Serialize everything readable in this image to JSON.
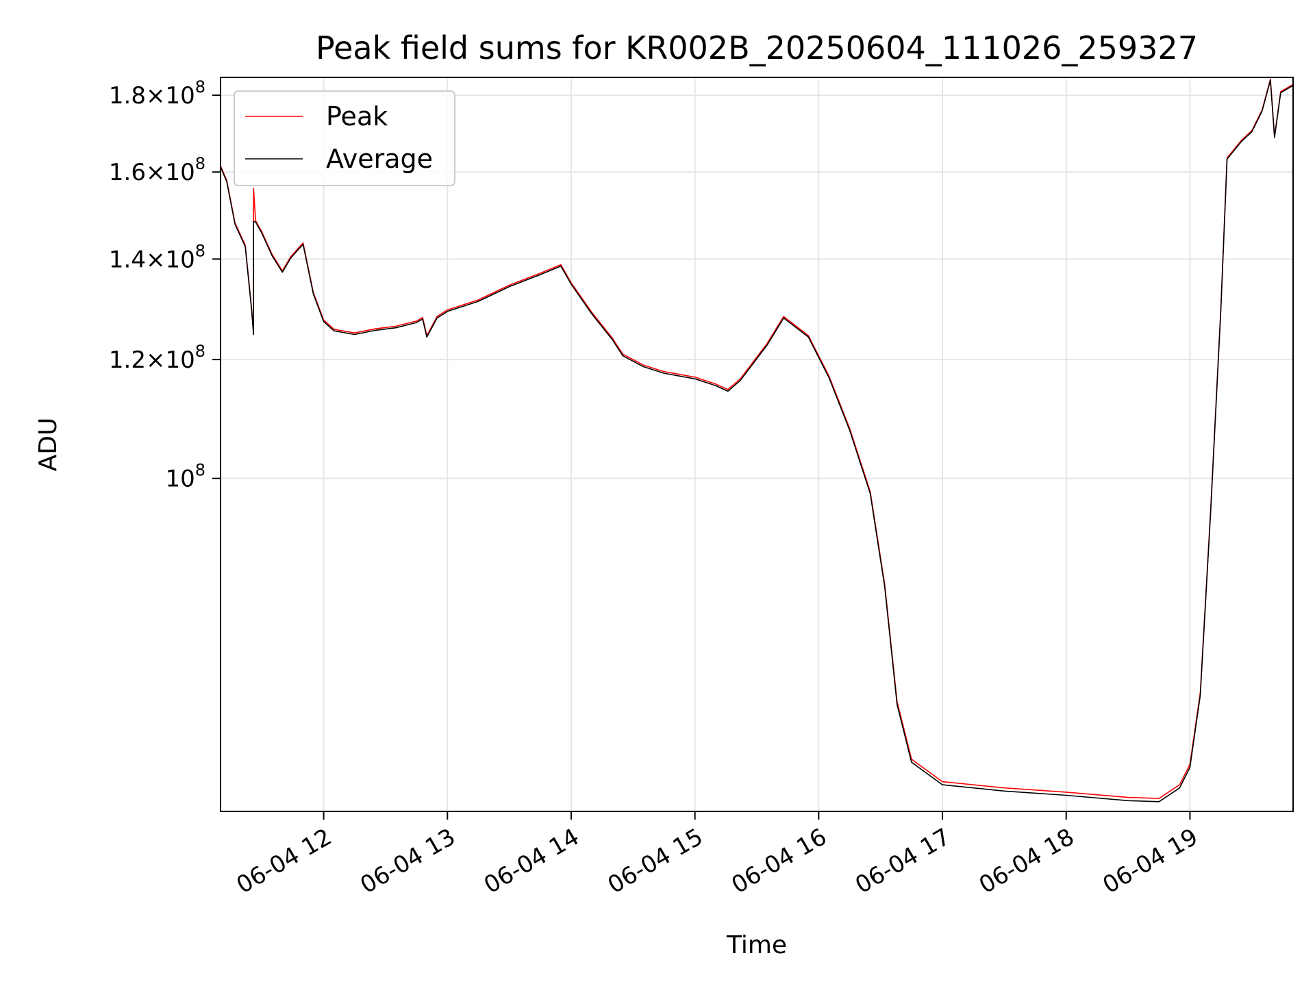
{
  "chart_data": {
    "type": "line",
    "title": "Peak field sums for KR002B_20250604_111026_259327",
    "xlabel": "Time",
    "ylabel": "ADU",
    "y_scale": "log",
    "grid": true,
    "legend_position": "top-left",
    "x_range": [
      "2025-06-04 11:10",
      "2025-06-04 19:50"
    ],
    "ylim": [
      60000000,
      185000000
    ],
    "x_ticks": [
      {
        "label": "06-04 12",
        "time": "2025-06-04 12:00"
      },
      {
        "label": "06-04 13",
        "time": "2025-06-04 13:00"
      },
      {
        "label": "06-04 14",
        "time": "2025-06-04 14:00"
      },
      {
        "label": "06-04 15",
        "time": "2025-06-04 15:00"
      },
      {
        "label": "06-04 16",
        "time": "2025-06-04 16:00"
      },
      {
        "label": "06-04 17",
        "time": "2025-06-04 17:00"
      },
      {
        "label": "06-04 18",
        "time": "2025-06-04 18:00"
      },
      {
        "label": "06-04 19",
        "time": "2025-06-04 19:00"
      }
    ],
    "y_ticks": [
      {
        "value": 100000000,
        "mantissa": "",
        "exponent": "8"
      },
      {
        "value": 120000000,
        "mantissa": "1.2",
        "exponent": "8"
      },
      {
        "value": 140000000,
        "mantissa": "1.4",
        "exponent": "8"
      },
      {
        "value": 160000000,
        "mantissa": "1.6",
        "exponent": "8"
      },
      {
        "value": 180000000,
        "mantissa": "1.8",
        "exponent": "8"
      }
    ],
    "series": [
      {
        "name": "Peak",
        "color": "#ff0000",
        "points": [
          [
            "2025-06-04 11:10",
            161500000
          ],
          [
            "2025-06-04 11:13",
            158000000
          ],
          [
            "2025-06-04 11:17",
            148000000
          ],
          [
            "2025-06-04 11:22",
            143000000
          ],
          [
            "2025-06-04 11:25",
            130000000
          ],
          [
            "2025-06-04 11:26",
            125000000
          ],
          [
            "2025-06-04 11:26",
            156000000
          ],
          [
            "2025-06-04 11:27",
            148500000
          ],
          [
            "2025-06-04 11:30",
            146000000
          ],
          [
            "2025-06-04 11:35",
            141000000
          ],
          [
            "2025-06-04 11:40",
            137500000
          ],
          [
            "2025-06-04 11:44",
            140500000
          ],
          [
            "2025-06-04 11:48",
            142500000
          ],
          [
            "2025-06-04 11:50",
            143500000
          ],
          [
            "2025-06-04 11:55",
            133000000
          ],
          [
            "2025-06-04 12:00",
            127500000
          ],
          [
            "2025-06-04 12:05",
            125700000
          ],
          [
            "2025-06-04 12:15",
            125000000
          ],
          [
            "2025-06-04 12:25",
            125800000
          ],
          [
            "2025-06-04 12:35",
            126300000
          ],
          [
            "2025-06-04 12:45",
            127300000
          ],
          [
            "2025-06-04 12:48",
            128000000
          ],
          [
            "2025-06-04 12:50",
            124500000
          ],
          [
            "2025-06-04 12:55",
            128200000
          ],
          [
            "2025-06-04 13:00",
            129500000
          ],
          [
            "2025-06-04 13:15",
            131500000
          ],
          [
            "2025-06-04 13:30",
            134500000
          ],
          [
            "2025-06-04 13:45",
            137000000
          ],
          [
            "2025-06-04 13:55",
            138800000
          ],
          [
            "2025-06-04 14:00",
            135000000
          ],
          [
            "2025-06-04 14:10",
            129000000
          ],
          [
            "2025-06-04 14:20",
            124000000
          ],
          [
            "2025-06-04 14:25",
            121000000
          ],
          [
            "2025-06-04 14:35",
            119000000
          ],
          [
            "2025-06-04 14:45",
            117800000
          ],
          [
            "2025-06-04 15:00",
            116800000
          ],
          [
            "2025-06-04 15:10",
            115600000
          ],
          [
            "2025-06-04 15:16",
            114600000
          ],
          [
            "2025-06-04 15:22",
            116500000
          ],
          [
            "2025-06-04 15:35",
            123000000
          ],
          [
            "2025-06-04 15:43",
            128200000
          ],
          [
            "2025-06-04 15:55",
            124500000
          ],
          [
            "2025-06-04 16:05",
            117000000
          ],
          [
            "2025-06-04 16:15",
            108000000
          ],
          [
            "2025-06-04 16:25",
            98000000
          ],
          [
            "2025-06-04 16:32",
            85000000
          ],
          [
            "2025-06-04 16:38",
            71000000
          ],
          [
            "2025-06-04 16:45",
            65000000
          ],
          [
            "2025-06-04 17:00",
            62800000
          ],
          [
            "2025-06-04 17:30",
            62200000
          ],
          [
            "2025-06-04 18:00",
            61800000
          ],
          [
            "2025-06-04 18:30",
            61300000
          ],
          [
            "2025-06-04 18:45",
            61200000
          ],
          [
            "2025-06-04 18:55",
            62500000
          ],
          [
            "2025-06-04 19:00",
            64500000
          ],
          [
            "2025-06-04 19:05",
            72000000
          ],
          [
            "2025-06-04 19:10",
            95000000
          ],
          [
            "2025-06-04 19:15",
            130000000
          ],
          [
            "2025-06-04 19:18",
            163500000
          ],
          [
            "2025-06-04 19:25",
            168000000
          ],
          [
            "2025-06-04 19:30",
            170500000
          ],
          [
            "2025-06-04 19:35",
            176000000
          ],
          [
            "2025-06-04 19:39",
            184500000
          ],
          [
            "2025-06-04 19:41",
            169000000
          ],
          [
            "2025-06-04 19:44",
            181000000
          ],
          [
            "2025-06-04 19:50",
            183000000
          ]
        ]
      },
      {
        "name": "Average",
        "color": "#000000",
        "points": [
          [
            "2025-06-04 11:10",
            161200000
          ],
          [
            "2025-06-04 11:13",
            157700000
          ],
          [
            "2025-06-04 11:17",
            147700000
          ],
          [
            "2025-06-04 11:22",
            142700000
          ],
          [
            "2025-06-04 11:25",
            129700000
          ],
          [
            "2025-06-04 11:26",
            124700000
          ],
          [
            "2025-06-04 11:26",
            148300000
          ],
          [
            "2025-06-04 11:27",
            148200000
          ],
          [
            "2025-06-04 11:30",
            145700000
          ],
          [
            "2025-06-04 11:35",
            140700000
          ],
          [
            "2025-06-04 11:40",
            137200000
          ],
          [
            "2025-06-04 11:44",
            140200000
          ],
          [
            "2025-06-04 11:48",
            142200000
          ],
          [
            "2025-06-04 11:50",
            143200000
          ],
          [
            "2025-06-04 11:55",
            132700000
          ],
          [
            "2025-06-04 12:00",
            127200000
          ],
          [
            "2025-06-04 12:05",
            125400000
          ],
          [
            "2025-06-04 12:15",
            124700000
          ],
          [
            "2025-06-04 12:25",
            125500000
          ],
          [
            "2025-06-04 12:35",
            126000000
          ],
          [
            "2025-06-04 12:45",
            127000000
          ],
          [
            "2025-06-04 12:48",
            127700000
          ],
          [
            "2025-06-04 12:50",
            124200000
          ],
          [
            "2025-06-04 12:55",
            127900000
          ],
          [
            "2025-06-04 13:00",
            129200000
          ],
          [
            "2025-06-04 13:15",
            131200000
          ],
          [
            "2025-06-04 13:30",
            134200000
          ],
          [
            "2025-06-04 13:45",
            136700000
          ],
          [
            "2025-06-04 13:55",
            138500000
          ],
          [
            "2025-06-04 14:00",
            134700000
          ],
          [
            "2025-06-04 14:10",
            128700000
          ],
          [
            "2025-06-04 14:20",
            123700000
          ],
          [
            "2025-06-04 14:25",
            120700000
          ],
          [
            "2025-06-04 14:35",
            118700000
          ],
          [
            "2025-06-04 14:45",
            117500000
          ],
          [
            "2025-06-04 15:00",
            116500000
          ],
          [
            "2025-06-04 15:10",
            115300000
          ],
          [
            "2025-06-04 15:16",
            114300000
          ],
          [
            "2025-06-04 15:22",
            116200000
          ],
          [
            "2025-06-04 15:35",
            122700000
          ],
          [
            "2025-06-04 15:43",
            127900000
          ],
          [
            "2025-06-04 15:55",
            124200000
          ],
          [
            "2025-06-04 16:05",
            116700000
          ],
          [
            "2025-06-04 16:15",
            107700000
          ],
          [
            "2025-06-04 16:25",
            97700000
          ],
          [
            "2025-06-04 16:32",
            84700000
          ],
          [
            "2025-06-04 16:38",
            70700000
          ],
          [
            "2025-06-04 16:45",
            64700000
          ],
          [
            "2025-06-04 17:00",
            62500000
          ],
          [
            "2025-06-04 17:30",
            61900000
          ],
          [
            "2025-06-04 18:00",
            61500000
          ],
          [
            "2025-06-04 18:30",
            61000000
          ],
          [
            "2025-06-04 18:45",
            60900000
          ],
          [
            "2025-06-04 18:55",
            62200000
          ],
          [
            "2025-06-04 19:00",
            64200000
          ],
          [
            "2025-06-04 19:05",
            71700000
          ],
          [
            "2025-06-04 19:10",
            94700000
          ],
          [
            "2025-06-04 19:15",
            129700000
          ],
          [
            "2025-06-04 19:18",
            163200000
          ],
          [
            "2025-06-04 19:25",
            167700000
          ],
          [
            "2025-06-04 19:30",
            170200000
          ],
          [
            "2025-06-04 19:35",
            175700000
          ],
          [
            "2025-06-04 19:39",
            184200000
          ],
          [
            "2025-06-04 19:41",
            168700000
          ],
          [
            "2025-06-04 19:44",
            180700000
          ],
          [
            "2025-06-04 19:50",
            182700000
          ]
        ]
      }
    ]
  }
}
